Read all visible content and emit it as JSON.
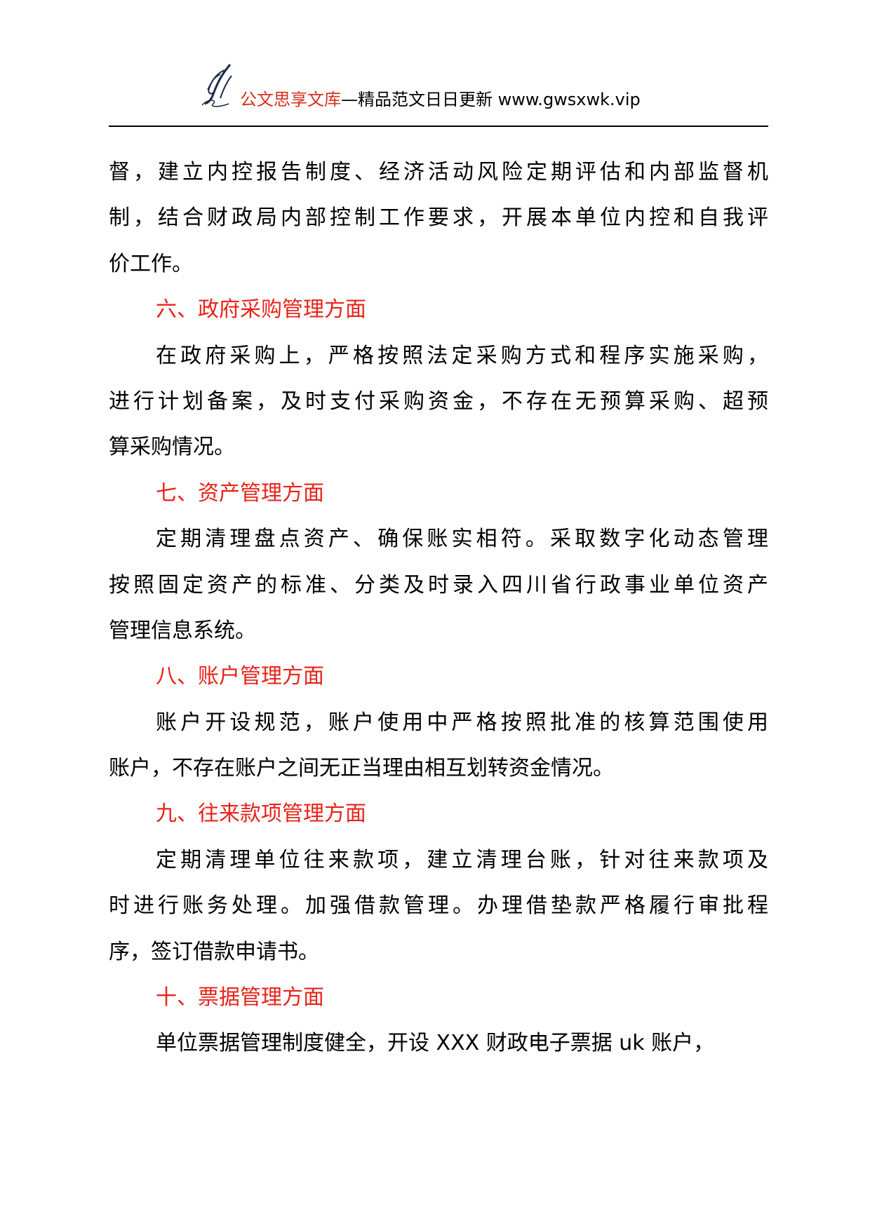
{
  "header": {
    "site_name": "公文思享文库",
    "tagline": "—精品范文日日更新 www.gwsxwk.vip",
    "logo": "quill-pen-logo",
    "brand_color": "#d9301c"
  },
  "accent_color": "#e8231a",
  "lines": [
    {
      "text": "督，建立内控报告制度、经济活动风险定期评估和内部监督机",
      "type": "body",
      "indent": false,
      "justify": true
    },
    {
      "text": "制，结合财政局内部控制工作要求，开展本单位内控和自我评",
      "type": "body",
      "indent": false,
      "justify": true
    },
    {
      "text": "价工作。",
      "type": "body",
      "indent": false,
      "justify": false
    },
    {
      "text": "六、政府采购管理方面",
      "type": "heading",
      "indent": true,
      "justify": false
    },
    {
      "text": "在政府采购上，严格按照法定采购方式和程序实施采购，",
      "type": "body",
      "indent": true,
      "justify": true
    },
    {
      "text": "进行计划备案，及时支付采购资金，不存在无预算采购、超预",
      "type": "body",
      "indent": false,
      "justify": true
    },
    {
      "text": "算采购情况。",
      "type": "body",
      "indent": false,
      "justify": false
    },
    {
      "text": "七、资产管理方面",
      "type": "heading",
      "indent": true,
      "justify": false
    },
    {
      "text": "定期清理盘点资产、确保账实相符。采取数字化动态管理",
      "type": "body",
      "indent": true,
      "justify": true
    },
    {
      "text": "按照固定资产的标准、分类及时录入四川省行政事业单位资产",
      "type": "body",
      "indent": false,
      "justify": true
    },
    {
      "text": "管理信息系统。",
      "type": "body",
      "indent": false,
      "justify": false
    },
    {
      "text": "八、账户管理方面",
      "type": "heading",
      "indent": true,
      "justify": false
    },
    {
      "text": "账户开设规范，账户使用中严格按照批准的核算范围使用",
      "type": "body",
      "indent": true,
      "justify": true
    },
    {
      "text": "账户，不存在账户之间无正当理由相互划转资金情况。",
      "type": "body",
      "indent": false,
      "justify": false
    },
    {
      "text": "九、往来款项管理方面",
      "type": "heading",
      "indent": true,
      "justify": false
    },
    {
      "text": "定期清理单位往来款项，建立清理台账，针对往来款项及",
      "type": "body",
      "indent": true,
      "justify": true
    },
    {
      "text": "时进行账务处理。加强借款管理。办理借垫款严格履行审批程",
      "type": "body",
      "indent": false,
      "justify": true
    },
    {
      "text": "序，签订借款申请书。",
      "type": "body",
      "indent": false,
      "justify": false
    },
    {
      "text": "十、票据管理方面",
      "type": "heading",
      "indent": true,
      "justify": false
    },
    {
      "text": "单位票据管理制度健全，开设 XXX 财政电子票据 uk 账户，",
      "type": "body",
      "indent": true,
      "justify": false
    }
  ]
}
